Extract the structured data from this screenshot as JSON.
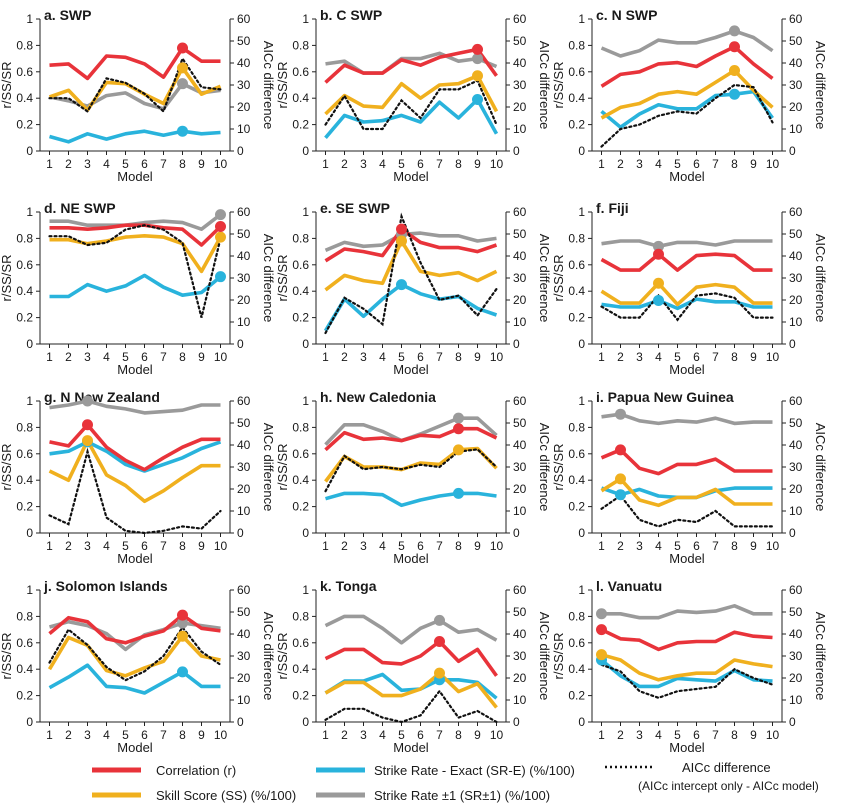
{
  "colors": {
    "correlation": "#e8333a",
    "skill_score": "#f0b01e",
    "strike_exact": "#29b3dc",
    "strike_pm1": "#9a9a9a",
    "aicc": "#111111"
  },
  "legend": {
    "correlation": "Correlation (r)",
    "skill_score": "Skill Score (SS) (%/100)",
    "strike_exact": "Strike Rate - Exact (SR-E) (%/100)",
    "strike_pm1": "Strike Rate ±1 (SR±1) (%/100)",
    "aicc_line1": "AICc difference",
    "aicc_line2": "(AICc intercept only - AICc model)"
  },
  "chart_data": [
    {
      "type": "line",
      "title": "a. SWP",
      "xlabel": "Model",
      "ylabel": "r/SS/SR",
      "y2label": "AICc difference",
      "x": [
        1,
        2,
        3,
        4,
        5,
        6,
        7,
        8,
        9,
        10
      ],
      "ylim": [
        0,
        1
      ],
      "y2lim": [
        0,
        60
      ],
      "yticks": [
        "0",
        "0.2",
        "0.4",
        "0.6",
        "0.8",
        "1"
      ],
      "y2ticks": [
        "0",
        "10",
        "20",
        "30",
        "40",
        "50",
        "60"
      ],
      "best_model": 8,
      "series": {
        "correlation": [
          0.65,
          0.66,
          0.55,
          0.72,
          0.71,
          0.66,
          0.56,
          0.78,
          0.68,
          0.68
        ],
        "skill_score": [
          0.41,
          0.46,
          0.31,
          0.52,
          0.51,
          0.43,
          0.36,
          0.63,
          0.43,
          0.49
        ],
        "strike_exact": [
          0.11,
          0.07,
          0.13,
          0.09,
          0.13,
          0.15,
          0.12,
          0.15,
          0.13,
          0.14
        ],
        "strike_pm1": [
          0.41,
          0.38,
          0.34,
          0.42,
          0.44,
          0.36,
          0.32,
          0.51,
          0.44,
          0.46
        ],
        "aicc": [
          24,
          24,
          18,
          33,
          31,
          26,
          18,
          42,
          29,
          28
        ]
      }
    },
    {
      "type": "line",
      "title": "b. C SWP",
      "xlabel": "Model",
      "ylabel": "r/SS/SR",
      "y2label": "AICc difference",
      "x": [
        1,
        2,
        3,
        4,
        5,
        6,
        7,
        8,
        9,
        10
      ],
      "ylim": [
        0,
        1
      ],
      "y2lim": [
        0,
        60
      ],
      "yticks": [
        "0",
        "0.2",
        "0.4",
        "0.6",
        "0.8",
        "1"
      ],
      "y2ticks": [
        "0",
        "10",
        "20",
        "30",
        "40",
        "50",
        "60"
      ],
      "best_model": 9,
      "series": {
        "correlation": [
          0.52,
          0.65,
          0.59,
          0.59,
          0.69,
          0.65,
          0.71,
          0.74,
          0.77,
          0.57
        ],
        "skill_score": [
          0.28,
          0.42,
          0.34,
          0.33,
          0.51,
          0.4,
          0.5,
          0.51,
          0.57,
          0.3
        ],
        "strike_exact": [
          0.1,
          0.27,
          0.22,
          0.23,
          0.27,
          0.22,
          0.37,
          0.25,
          0.39,
          0.13
        ],
        "strike_pm1": [
          0.66,
          0.68,
          0.59,
          0.59,
          0.7,
          0.7,
          0.74,
          0.68,
          0.7,
          0.64
        ],
        "aicc": [
          12,
          25,
          10,
          10,
          23,
          15,
          28,
          28,
          32,
          12
        ]
      }
    },
    {
      "type": "line",
      "title": "c. N SWP",
      "xlabel": "Model",
      "ylabel": "r/SS/SR",
      "y2label": "AICc difference",
      "x": [
        1,
        2,
        3,
        4,
        5,
        6,
        7,
        8,
        9,
        10
      ],
      "ylim": [
        0,
        1
      ],
      "y2lim": [
        0,
        60
      ],
      "yticks": [
        "0",
        "0.2",
        "0.4",
        "0.6",
        "0.8",
        "1"
      ],
      "y2ticks": [
        "0",
        "10",
        "20",
        "30",
        "40",
        "50",
        "60"
      ],
      "best_model": 8,
      "series": {
        "correlation": [
          0.49,
          0.58,
          0.6,
          0.66,
          0.67,
          0.64,
          0.72,
          0.79,
          0.66,
          0.55
        ],
        "skill_score": [
          0.25,
          0.33,
          0.36,
          0.43,
          0.45,
          0.43,
          0.52,
          0.61,
          0.46,
          0.33
        ],
        "strike_exact": [
          0.3,
          0.18,
          0.28,
          0.35,
          0.32,
          0.32,
          0.42,
          0.43,
          0.45,
          0.25
        ],
        "strike_pm1": [
          0.78,
          0.72,
          0.76,
          0.84,
          0.82,
          0.82,
          0.86,
          0.91,
          0.86,
          0.76
        ],
        "aicc": [
          2,
          10,
          12,
          16,
          18,
          17,
          24,
          30,
          29,
          13
        ]
      }
    },
    {
      "type": "line",
      "title": "d. NE SWP",
      "xlabel": "Model",
      "ylabel": "r/SS/SR",
      "y2label": "AICc difference",
      "x": [
        1,
        2,
        3,
        4,
        5,
        6,
        7,
        8,
        9,
        10
      ],
      "ylim": [
        0,
        1
      ],
      "y2lim": [
        0,
        60
      ],
      "yticks": [
        "0",
        "0.2",
        "0.4",
        "0.6",
        "0.8",
        "1"
      ],
      "y2ticks": [
        "0",
        "10",
        "20",
        "30",
        "40",
        "50",
        "60"
      ],
      "best_model": 10,
      "series": {
        "correlation": [
          0.88,
          0.88,
          0.87,
          0.88,
          0.9,
          0.9,
          0.88,
          0.87,
          0.75,
          0.89
        ],
        "skill_score": [
          0.79,
          0.79,
          0.76,
          0.78,
          0.81,
          0.82,
          0.81,
          0.76,
          0.55,
          0.81
        ],
        "strike_exact": [
          0.36,
          0.36,
          0.45,
          0.4,
          0.44,
          0.52,
          0.43,
          0.37,
          0.39,
          0.51
        ],
        "strike_pm1": [
          0.93,
          0.93,
          0.9,
          0.9,
          0.9,
          0.92,
          0.93,
          0.92,
          0.87,
          0.98
        ],
        "aicc": [
          49,
          49,
          45,
          46,
          52,
          54,
          52,
          46,
          12,
          48
        ]
      }
    },
    {
      "type": "line",
      "title": "e. SE SWP",
      "xlabel": "Model",
      "ylabel": "r/SS/SR",
      "y2label": "AICc difference",
      "x": [
        1,
        2,
        3,
        4,
        5,
        6,
        7,
        8,
        9,
        10
      ],
      "ylim": [
        0,
        1
      ],
      "y2lim": [
        0,
        60
      ],
      "yticks": [
        "0",
        "0.2",
        "0.4",
        "0.6",
        "0.8",
        "1"
      ],
      "y2ticks": [
        "0",
        "10",
        "20",
        "30",
        "40",
        "50",
        "60"
      ],
      "best_model": 5,
      "series": {
        "correlation": [
          0.63,
          0.72,
          0.7,
          0.67,
          0.87,
          0.77,
          0.73,
          0.73,
          0.7,
          0.75
        ],
        "skill_score": [
          0.41,
          0.52,
          0.48,
          0.46,
          0.78,
          0.55,
          0.52,
          0.54,
          0.48,
          0.55
        ],
        "strike_exact": [
          0.1,
          0.34,
          0.21,
          0.34,
          0.45,
          0.38,
          0.34,
          0.36,
          0.27,
          0.22
        ],
        "strike_pm1": [
          0.71,
          0.77,
          0.74,
          0.75,
          0.83,
          0.84,
          0.82,
          0.82,
          0.78,
          0.8
        ],
        "aicc": [
          5,
          21,
          16,
          9,
          58,
          37,
          20,
          22,
          13,
          25
        ]
      }
    },
    {
      "type": "line",
      "title": "f. Fiji",
      "xlabel": "Model",
      "ylabel": "r/SS/SR",
      "y2label": "AICc difference",
      "x": [
        1,
        2,
        3,
        4,
        5,
        6,
        7,
        8,
        9,
        10
      ],
      "ylim": [
        0,
        1
      ],
      "y2lim": [
        0,
        60
      ],
      "yticks": [
        "0",
        "0.2",
        "0.4",
        "0.6",
        "0.8",
        "1"
      ],
      "y2ticks": [
        "0",
        "10",
        "20",
        "30",
        "40",
        "50",
        "60"
      ],
      "best_model": 4,
      "series": {
        "correlation": [
          0.64,
          0.56,
          0.56,
          0.68,
          0.56,
          0.67,
          0.68,
          0.67,
          0.56,
          0.56
        ],
        "skill_score": [
          0.4,
          0.31,
          0.31,
          0.46,
          0.3,
          0.43,
          0.45,
          0.43,
          0.31,
          0.31
        ],
        "strike_exact": [
          0.3,
          0.28,
          0.28,
          0.33,
          0.27,
          0.34,
          0.32,
          0.32,
          0.28,
          0.28
        ],
        "strike_pm1": [
          0.76,
          0.78,
          0.78,
          0.74,
          0.77,
          0.77,
          0.75,
          0.78,
          0.78,
          0.78
        ],
        "aicc": [
          17,
          12,
          12,
          22,
          11,
          22,
          23,
          21,
          12,
          12
        ]
      }
    },
    {
      "type": "line",
      "title": "g. N New Zealand",
      "xlabel": "Model",
      "ylabel": "r/SS/SR",
      "y2label": "AICc difference",
      "x": [
        1,
        2,
        3,
        4,
        5,
        6,
        7,
        8,
        9,
        10
      ],
      "ylim": [
        0,
        1
      ],
      "y2lim": [
        0,
        60
      ],
      "yticks": [
        "0",
        "0.2",
        "0.4",
        "0.6",
        "0.8",
        "1"
      ],
      "y2ticks": [
        "0",
        "10",
        "20",
        "30",
        "40",
        "50",
        "60"
      ],
      "best_model": 3,
      "series": {
        "correlation": [
          0.69,
          0.66,
          0.82,
          0.65,
          0.55,
          0.48,
          0.57,
          0.65,
          0.71,
          0.71
        ],
        "skill_score": [
          0.47,
          0.4,
          0.7,
          0.44,
          0.36,
          0.24,
          0.32,
          0.42,
          0.51,
          0.51
        ],
        "strike_exact": [
          0.6,
          0.62,
          0.69,
          0.62,
          0.52,
          0.47,
          0.52,
          0.57,
          0.64,
          0.69
        ],
        "strike_pm1": [
          0.95,
          0.97,
          1.0,
          0.96,
          0.94,
          0.91,
          0.92,
          0.93,
          0.97,
          0.97
        ],
        "aicc": [
          8,
          4,
          37,
          7,
          1,
          0,
          1,
          3,
          2,
          10
        ]
      }
    },
    {
      "type": "line",
      "title": "h. New Caledonia",
      "xlabel": "Model",
      "ylabel": "r/SS/SR",
      "y2label": "AICc difference",
      "x": [
        1,
        2,
        3,
        4,
        5,
        6,
        7,
        8,
        9,
        10
      ],
      "ylim": [
        0,
        1
      ],
      "y2lim": [
        0,
        60
      ],
      "yticks": [
        "0",
        "0.2",
        "0.4",
        "0.6",
        "0.8",
        "1"
      ],
      "y2ticks": [
        "0",
        "10",
        "20",
        "30",
        "40",
        "50",
        "60"
      ],
      "best_model": 8,
      "series": {
        "correlation": [
          0.63,
          0.76,
          0.71,
          0.72,
          0.7,
          0.74,
          0.73,
          0.79,
          0.79,
          0.72
        ],
        "skill_score": [
          0.39,
          0.58,
          0.5,
          0.5,
          0.48,
          0.53,
          0.52,
          0.63,
          0.64,
          0.49
        ],
        "strike_exact": [
          0.26,
          0.3,
          0.3,
          0.29,
          0.21,
          0.25,
          0.28,
          0.3,
          0.3,
          0.28
        ],
        "strike_pm1": [
          0.67,
          0.82,
          0.82,
          0.77,
          0.7,
          0.75,
          0.81,
          0.87,
          0.87,
          0.74
        ],
        "aicc": [
          19,
          35,
          29,
          30,
          29,
          31,
          30,
          37,
          38,
          30
        ]
      }
    },
    {
      "type": "line",
      "title": "i. Papua New Guinea",
      "xlabel": "Model",
      "ylabel": "r/SS/SR",
      "y2label": "AICc difference",
      "x": [
        1,
        2,
        3,
        4,
        5,
        6,
        7,
        8,
        9,
        10
      ],
      "ylim": [
        0,
        1
      ],
      "y2lim": [
        0,
        60
      ],
      "yticks": [
        "0",
        "0.2",
        "0.4",
        "0.6",
        "0.8",
        "1"
      ],
      "y2ticks": [
        "0",
        "10",
        "20",
        "30",
        "40",
        "50",
        "60"
      ],
      "best_model": 2,
      "series": {
        "correlation": [
          0.57,
          0.63,
          0.49,
          0.45,
          0.52,
          0.52,
          0.56,
          0.47,
          0.47,
          0.47
        ],
        "skill_score": [
          0.32,
          0.41,
          0.25,
          0.21,
          0.27,
          0.27,
          0.33,
          0.22,
          0.22,
          0.22
        ],
        "strike_exact": [
          0.34,
          0.29,
          0.33,
          0.28,
          0.27,
          0.27,
          0.32,
          0.34,
          0.34,
          0.34
        ],
        "strike_pm1": [
          0.88,
          0.9,
          0.85,
          0.83,
          0.85,
          0.84,
          0.87,
          0.83,
          0.84,
          0.84
        ],
        "aicc": [
          11,
          17,
          6,
          3,
          6,
          5,
          10,
          3,
          3,
          3
        ]
      }
    },
    {
      "type": "line",
      "title": "j. Solomon Islands",
      "xlabel": "Model",
      "ylabel": "r/SS/SR",
      "y2label": "AICc difference",
      "x": [
        1,
        2,
        3,
        4,
        5,
        6,
        7,
        8,
        9,
        10
      ],
      "ylim": [
        0,
        1
      ],
      "y2lim": [
        0,
        60
      ],
      "yticks": [
        "0",
        "0.2",
        "0.4",
        "0.6",
        "0.8",
        "1"
      ],
      "y2ticks": [
        "0",
        "10",
        "20",
        "30",
        "40",
        "50",
        "60"
      ],
      "best_model": 8,
      "series": {
        "correlation": [
          0.67,
          0.79,
          0.76,
          0.63,
          0.6,
          0.65,
          0.69,
          0.81,
          0.71,
          0.69
        ],
        "skill_score": [
          0.4,
          0.64,
          0.58,
          0.39,
          0.35,
          0.41,
          0.46,
          0.65,
          0.5,
          0.47
        ],
        "strike_exact": [
          0.26,
          0.34,
          0.43,
          0.27,
          0.26,
          0.22,
          0.3,
          0.38,
          0.27,
          0.27
        ],
        "strike_pm1": [
          0.72,
          0.76,
          0.73,
          0.67,
          0.55,
          0.66,
          0.7,
          0.75,
          0.73,
          0.71
        ],
        "aicc": [
          27,
          42,
          35,
          25,
          19,
          23,
          30,
          43,
          32,
          26
        ]
      }
    },
    {
      "type": "line",
      "title": "k. Tonga",
      "xlabel": "Model",
      "ylabel": "r/SS/SR",
      "y2label": "AICc difference",
      "x": [
        1,
        2,
        3,
        4,
        5,
        6,
        7,
        8,
        9,
        10
      ],
      "ylim": [
        0,
        1
      ],
      "y2lim": [
        0,
        60
      ],
      "yticks": [
        "0",
        "0.2",
        "0.4",
        "0.6",
        "0.8",
        "1"
      ],
      "y2ticks": [
        "0",
        "10",
        "20",
        "30",
        "40",
        "50",
        "60"
      ],
      "best_model": 7,
      "series": {
        "correlation": [
          0.48,
          0.55,
          0.55,
          0.45,
          0.44,
          0.5,
          0.61,
          0.46,
          0.55,
          0.35
        ],
        "skill_score": [
          0.22,
          0.3,
          0.3,
          0.2,
          0.2,
          0.25,
          0.37,
          0.23,
          0.29,
          0.11
        ],
        "strike_exact": [
          0.22,
          0.31,
          0.31,
          0.36,
          0.24,
          0.25,
          0.32,
          0.32,
          0.3,
          0.18
        ],
        "strike_pm1": [
          0.73,
          0.8,
          0.8,
          0.71,
          0.6,
          0.71,
          0.77,
          0.68,
          0.7,
          0.62
        ],
        "aicc": [
          1,
          6,
          6,
          2,
          0,
          3,
          14,
          2,
          5,
          0
        ]
      }
    },
    {
      "type": "line",
      "title": "l. Vanuatu",
      "xlabel": "Model",
      "ylabel": "r/SS/SR",
      "y2label": "AICc difference",
      "x": [
        1,
        2,
        3,
        4,
        5,
        6,
        7,
        8,
        9,
        10
      ],
      "ylim": [
        0,
        1
      ],
      "y2lim": [
        0,
        60
      ],
      "yticks": [
        "0",
        "0.2",
        "0.4",
        "0.6",
        "0.8",
        "1"
      ],
      "y2ticks": [
        "0",
        "10",
        "20",
        "30",
        "40",
        "50",
        "60"
      ],
      "best_model": 1,
      "series": {
        "correlation": [
          0.7,
          0.63,
          0.62,
          0.55,
          0.6,
          0.61,
          0.61,
          0.68,
          0.65,
          0.64
        ],
        "skill_score": [
          0.51,
          0.47,
          0.37,
          0.32,
          0.35,
          0.37,
          0.37,
          0.47,
          0.44,
          0.42
        ],
        "strike_exact": [
          0.47,
          0.35,
          0.27,
          0.27,
          0.33,
          0.32,
          0.31,
          0.39,
          0.32,
          0.31
        ],
        "strike_pm1": [
          0.82,
          0.82,
          0.79,
          0.79,
          0.84,
          0.83,
          0.84,
          0.88,
          0.82,
          0.82
        ],
        "aicc": [
          26,
          23,
          14,
          11,
          14,
          15,
          16,
          24,
          20,
          17
        ]
      }
    }
  ]
}
